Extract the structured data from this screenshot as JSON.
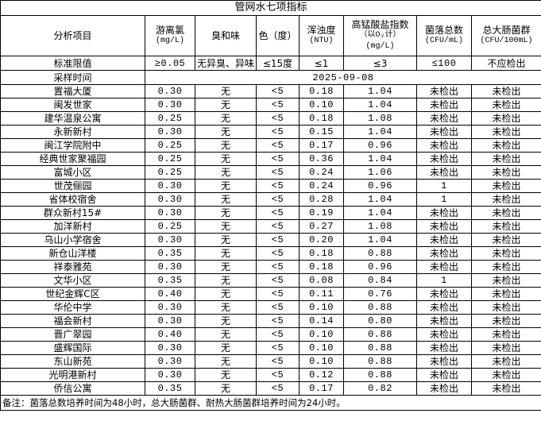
{
  "title": "管网水七项指标",
  "headers": [
    {
      "label": "分析项目",
      "unit": ""
    },
    {
      "label": "游离氯",
      "unit": "(mg/L)"
    },
    {
      "label": "臭和味",
      "unit": ""
    },
    {
      "label": "色（度）",
      "unit": ""
    },
    {
      "label": "浑浊度",
      "unit": "(NTU)"
    },
    {
      "label": "高锰酸盐指数",
      "unit": "（以O₂计）",
      "unit2": "(mg/L)"
    },
    {
      "label": "菌落总数",
      "unit": "(CFU/mL)"
    },
    {
      "label": "总大肠菌群",
      "unit": "(CFU/100mL)"
    }
  ],
  "standard": [
    "标准限值",
    "≥0.05",
    "无异臭、异味",
    "≤15度",
    "≤1",
    "≤3",
    "≤100",
    "不应检出"
  ],
  "sampling": {
    "label": "采样时间",
    "date": "2025-09-08"
  },
  "rows": [
    [
      "置福大厦",
      "0.30",
      "无",
      "<5",
      "0.18",
      "1.04",
      "未检出",
      "未检出"
    ],
    [
      "闽发世家",
      "0.30",
      "无",
      "<5",
      "0.10",
      "1.04",
      "未检出",
      "未检出"
    ],
    [
      "建华温泉公寓",
      "0.25",
      "无",
      "<5",
      "0.18",
      "1.08",
      "未检出",
      "未检出"
    ],
    [
      "永新新村",
      "0.30",
      "无",
      "<5",
      "0.15",
      "1.04",
      "未检出",
      "未检出"
    ],
    [
      "闽江学院附中",
      "0.25",
      "无",
      "<5",
      "0.17",
      "0.96",
      "未检出",
      "未检出"
    ],
    [
      "经典世家聚福园",
      "0.25",
      "无",
      "<5",
      "0.36",
      "1.04",
      "未检出",
      "未检出"
    ],
    [
      "富城小区",
      "0.25",
      "无",
      "<5",
      "0.24",
      "1.06",
      "未检出",
      "未检出"
    ],
    [
      "世茂俪园",
      "0.30",
      "无",
      "<5",
      "0.24",
      "0.96",
      "1",
      "未检出"
    ],
    [
      "省体校宿舍",
      "0.30",
      "无",
      "<5",
      "0.28",
      "1.04",
      "1",
      "未检出"
    ],
    [
      "群众新村15#",
      "0.30",
      "无",
      "<5",
      "0.19",
      "1.04",
      "未检出",
      "未检出"
    ],
    [
      "加洋新村",
      "0.25",
      "无",
      "<5",
      "0.27",
      "1.08",
      "未检出",
      "未检出"
    ],
    [
      "乌山小学宿舍",
      "0.30",
      "无",
      "<5",
      "0.20",
      "1.04",
      "未检出",
      "未检出"
    ],
    [
      "新仓山洋楼",
      "0.35",
      "无",
      "<5",
      "0.18",
      "0.88",
      "未检出",
      "未检出"
    ],
    [
      "祥泰雅苑",
      "0.30",
      "无",
      "<5",
      "0.18",
      "0.96",
      "未检出",
      "未检出"
    ],
    [
      "文华小区",
      "0.35",
      "无",
      "<5",
      "0.08",
      "0.84",
      "1",
      "未检出"
    ],
    [
      "世纪金辉C区",
      "0.40",
      "无",
      "<5",
      "0.11",
      "0.76",
      "未检出",
      "未检出"
    ],
    [
      "华伦中学",
      "0.30",
      "无",
      "<5",
      "0.10",
      "0.88",
      "未检出",
      "未检出"
    ],
    [
      "福会新村",
      "0.30",
      "无",
      "<5",
      "0.14",
      "0.80",
      "未检出",
      "未检出"
    ],
    [
      "晋广翠园",
      "0.40",
      "无",
      "<5",
      "0.10",
      "0.88",
      "未检出",
      "未检出"
    ],
    [
      "盛辉国际",
      "0.30",
      "无",
      "<5",
      "0.10",
      "0.88",
      "未检出",
      "未检出"
    ],
    [
      "东山新苑",
      "0.30",
      "无",
      "<5",
      "0.10",
      "0.88",
      "未检出",
      "未检出"
    ],
    [
      "光明港新村",
      "0.30",
      "无",
      "<5",
      "0.12",
      "0.88",
      "未检出",
      "未检出"
    ],
    [
      "侨信公寓",
      "0.35",
      "无",
      "<5",
      "0.17",
      "0.82",
      "未检出",
      "未检出"
    ]
  ],
  "note": "备注：菌落总数培养时间为48小时，总大肠菌群、耐热大肠菌群培养时间为24小时。"
}
